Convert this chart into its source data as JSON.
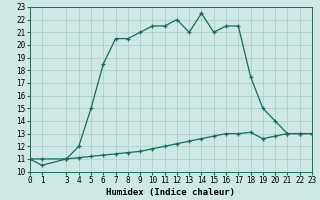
{
  "xlabel": "Humidex (Indice chaleur)",
  "background_color": "#cde8e5",
  "line_color": "#1a6b5a",
  "grid_color": "#a8cdc8",
  "line1_x": [
    0,
    1,
    3,
    4,
    5,
    6,
    7,
    8,
    9,
    10,
    11,
    12,
    13,
    14,
    15,
    16,
    17,
    18,
    19,
    20,
    21,
    22,
    23
  ],
  "line1_y": [
    11,
    10.5,
    11,
    12,
    15,
    18.5,
    20.5,
    20.5,
    21,
    21.5,
    21.5,
    22,
    21,
    22.5,
    21,
    21.5,
    21.5,
    17.5,
    15,
    14,
    13,
    13,
    13
  ],
  "line2_x": [
    0,
    1,
    3,
    4,
    5,
    6,
    7,
    8,
    9,
    10,
    11,
    12,
    13,
    14,
    15,
    16,
    17,
    18,
    19,
    20,
    21,
    22,
    23
  ],
  "line2_y": [
    11,
    11,
    11,
    11.1,
    11.2,
    11.3,
    11.4,
    11.5,
    11.6,
    11.8,
    12.0,
    12.2,
    12.4,
    12.6,
    12.8,
    13.0,
    13.0,
    13.1,
    12.6,
    12.8,
    13.0,
    13.0,
    13.0
  ],
  "xlim": [
    0,
    23
  ],
  "ylim": [
    10,
    23
  ],
  "xticks": [
    0,
    1,
    3,
    4,
    5,
    6,
    7,
    8,
    9,
    10,
    11,
    12,
    13,
    14,
    15,
    16,
    17,
    18,
    19,
    20,
    21,
    22,
    23
  ],
  "yticks": [
    10,
    11,
    12,
    13,
    14,
    15,
    16,
    17,
    18,
    19,
    20,
    21,
    22,
    23
  ],
  "tick_fontsize": 5.5,
  "xlabel_fontsize": 6.5
}
